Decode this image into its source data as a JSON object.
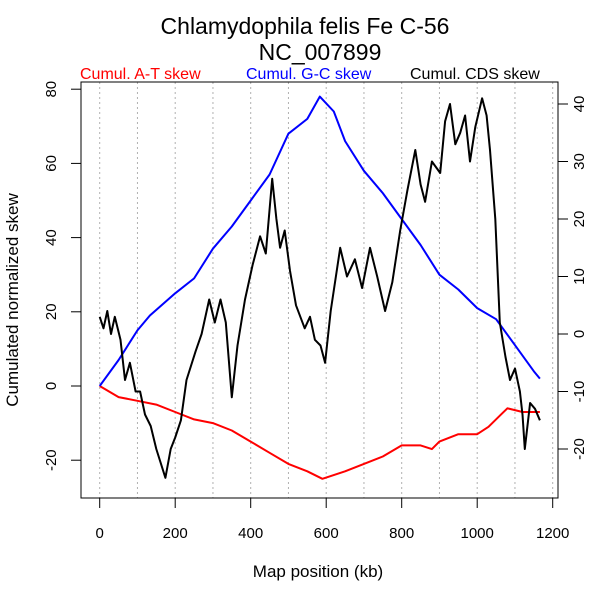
{
  "chart_data": {
    "type": "line",
    "title": "Chlamydophila felis Fe C-56",
    "subtitle": "NC_007899",
    "xlabel": "Map position (kb)",
    "ylabel": "Cumulated normalized skew",
    "xlim": [
      0,
      1200
    ],
    "ylim_left": [
      -28,
      82
    ],
    "ylim_right": [
      -27,
      44
    ],
    "x_ticks": [
      "0",
      "200",
      "400",
      "600",
      "800",
      "1000",
      "1200"
    ],
    "y_ticks_left": [
      "-20",
      "0",
      "20",
      "40",
      "60",
      "80"
    ],
    "y_ticks_right": [
      "-20",
      "-10",
      "0",
      "10",
      "20",
      "30",
      "40"
    ],
    "grid": "vertical dotted every 100 kb",
    "legend_placement": "top",
    "series": [
      {
        "name": "Cumul. A-T skew",
        "axis": "left",
        "color": "#ff0000",
        "x": [
          0,
          50,
          100,
          150,
          200,
          250,
          300,
          350,
          400,
          450,
          500,
          550,
          590,
          650,
          700,
          750,
          800,
          850,
          880,
          900,
          950,
          1000,
          1030,
          1060,
          1080,
          1120,
          1166
        ],
        "y": [
          0,
          -3,
          -4,
          -5,
          -7,
          -9,
          -10,
          -12,
          -15,
          -18,
          -21,
          -23,
          -25,
          -23,
          -21,
          -19,
          -16,
          -16,
          -17,
          -15,
          -13,
          -13,
          -11,
          -8,
          -6,
          -7,
          -7
        ]
      },
      {
        "name": "Cumul. G-C skew",
        "axis": "left",
        "color": "#0000ff",
        "x": [
          0,
          50,
          100,
          133,
          200,
          250,
          300,
          350,
          400,
          450,
          500,
          550,
          583,
          620,
          650,
          700,
          750,
          800,
          850,
          900,
          950,
          1000,
          1050,
          1100,
          1150,
          1166
        ],
        "y": [
          0,
          7,
          15,
          19,
          25,
          29,
          37,
          43,
          50,
          57,
          68,
          72,
          78,
          74,
          66,
          58,
          52,
          45,
          38,
          30,
          26,
          21,
          18,
          11,
          4,
          2
        ]
      },
      {
        "name": "Cumul. CDS skew",
        "axis": "right",
        "color": "#000000",
        "x": [
          0,
          10,
          20,
          30,
          40,
          55,
          67,
          80,
          95,
          107,
          120,
          135,
          150,
          174,
          188,
          200,
          215,
          230,
          254,
          270,
          290,
          305,
          320,
          334,
          350,
          365,
          385,
          405,
          425,
          440,
          457,
          468,
          478,
          490,
          504,
          520,
          543,
          557,
          570,
          585,
          597,
          612,
          637,
          655,
          676,
          695,
          716,
          735,
          756,
          775,
          796,
          815,
          836,
          850,
          862,
          880,
          902,
          915,
          928,
          942,
          955,
          968,
          981,
          995,
          1013,
          1025,
          1034,
          1048,
          1060,
          1075,
          1087,
          1100,
          1113,
          1120,
          1126,
          1140,
          1153,
          1166
        ],
        "y": [
          3,
          1,
          4,
          0,
          3,
          -1,
          -8,
          -5,
          -10,
          -10,
          -14,
          -16,
          -20,
          -25,
          -20,
          -18,
          -15,
          -8,
          -3,
          0,
          6,
          2,
          6,
          2,
          -11,
          -2,
          6,
          12,
          17,
          14,
          27,
          20,
          15,
          18,
          11,
          5,
          1,
          3,
          -1,
          -2,
          -5,
          4,
          15,
          10,
          13,
          8,
          15,
          10,
          4,
          9,
          18,
          25,
          32,
          26,
          23,
          30,
          28,
          37,
          40,
          33,
          35,
          38,
          30,
          36,
          41,
          38,
          32,
          20,
          2,
          -4,
          -8,
          -6,
          -10,
          -14,
          -20,
          -12,
          -13,
          -15
        ]
      }
    ]
  }
}
